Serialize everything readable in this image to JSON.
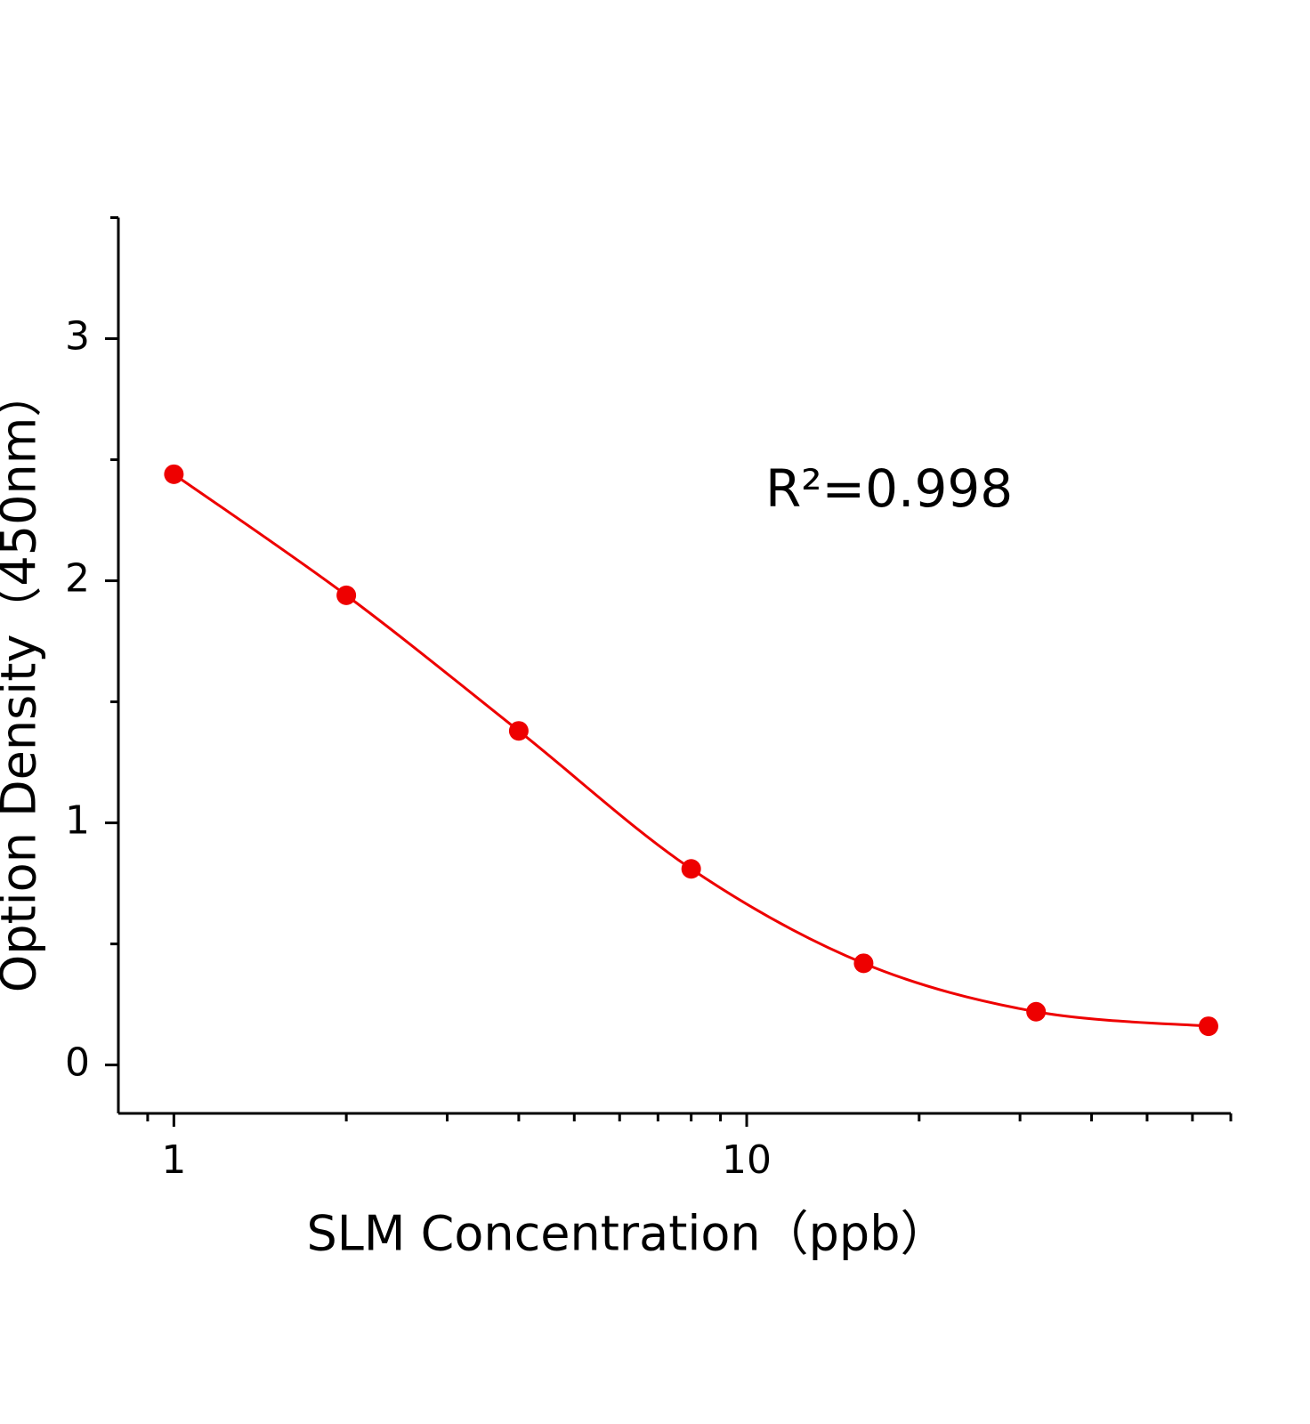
{
  "chart_data": {
    "type": "scatter",
    "xlabel": "SLM Concentration（ppb）",
    "ylabel": "Option Density（450nm）",
    "annotation": "R²=0.998",
    "x": [
      1,
      2,
      4,
      8,
      16,
      32,
      64
    ],
    "values": [
      2.44,
      1.94,
      1.38,
      0.81,
      0.42,
      0.22,
      0.16
    ],
    "color": "#ee0000",
    "fit_line": true,
    "xscale": "log",
    "xlim": [
      0.8,
      70
    ],
    "xticks": [
      1,
      10
    ],
    "xminorticks": [
      0.9,
      2,
      3,
      4,
      5,
      6,
      7,
      8,
      9,
      20,
      30,
      40,
      50,
      60,
      70
    ],
    "ylim": [
      -0.2,
      3.5
    ],
    "yticks": [
      0,
      1,
      2,
      3
    ],
    "yminorticks": [
      0.5,
      1.5,
      2.5,
      3.5
    ],
    "grid": false
  }
}
